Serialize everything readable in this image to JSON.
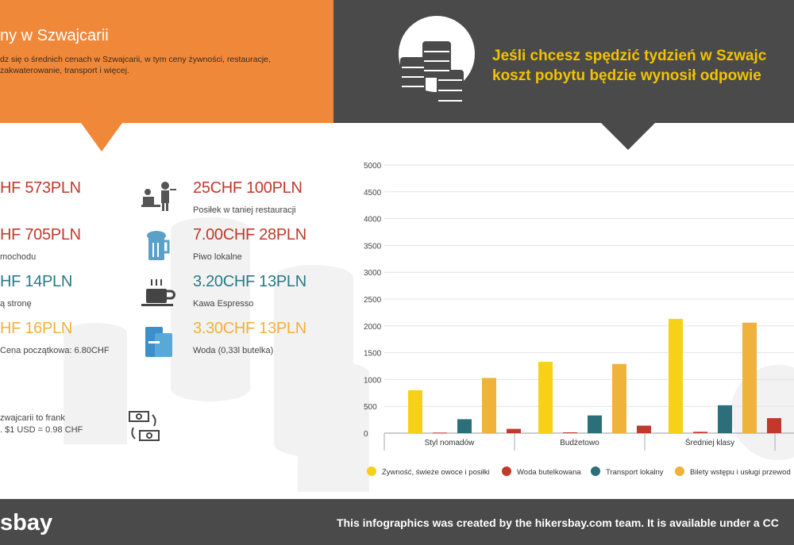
{
  "header": {
    "title": "ny w Szwajcarii",
    "description_line1": "dz się o średnich cenach w Szwajcarii, w tym ceny żywności, restauracje,",
    "description_line2": "zakwaterowanie, transport i więcej.",
    "headline_line1": "Jeśli chcesz spędzić tydzień w Szwajc",
    "headline_line2": "koszt pobytu będzie wynosił odpowie"
  },
  "prices_left": [
    {
      "price": "HF 573PLN",
      "label": "",
      "color": "#c0392b"
    },
    {
      "price": "HF 705PLN",
      "label": "mochodu",
      "color": "#c0392b"
    },
    {
      "price": "HF 14PLN",
      "label": "ą stronę",
      "color": "#2a7a86"
    },
    {
      "price": "HF 16PLN",
      "label": "Cena początkowa: 6.80CHF",
      "color": "#efb23a"
    }
  ],
  "prices_right": [
    {
      "price": "25CHF 100PLN",
      "label": "Posiłek w taniej restauracji",
      "icon": "waiter-icon",
      "color": "#c0392b"
    },
    {
      "price": "7.00CHF 28PLN",
      "label": "Piwo lokalne",
      "icon": "beer-icon",
      "color": "#c0392b"
    },
    {
      "price": "3.20CHF 13PLN",
      "label": "Kawa Espresso",
      "icon": "coffee-icon",
      "color": "#2a7a86"
    },
    {
      "price": "3.30CHF 13PLN",
      "label": "Woda (0,33l butelka)",
      "icon": "water-icon",
      "color": "#efb23a"
    }
  ],
  "currency": {
    "line1": "zwajcarii to frank",
    "line2": ". $1 USD = 0.98 CHF"
  },
  "footer": {
    "logo": "sbay",
    "note": "This infographics was created by the hikersbay.com team. It is available under a CC"
  },
  "chart_data": {
    "type": "bar",
    "categories": [
      "Styl nomadów",
      "Budżetowo",
      "Średniej klasy"
    ],
    "series": [
      {
        "name": "Żywność, świeże owoce i posiłki",
        "color": "#f7d117",
        "values": [
          800,
          1330,
          2130
        ]
      },
      {
        "name": "Woda butelkowana",
        "color": "#c0392b",
        "values": [
          10,
          15,
          25
        ]
      },
      {
        "name": "Transport lokalny",
        "color": "#2a6f7a",
        "values": [
          260,
          330,
          520
        ]
      },
      {
        "name": "Bilety wstępu i usługi przewod",
        "color": "#efb23a",
        "values": [
          1030,
          1290,
          2060
        ]
      },
      {
        "name": "",
        "color": "#c0392b",
        "values": [
          80,
          140,
          280
        ]
      }
    ],
    "ylim": [
      0,
      5000
    ],
    "yticks": [
      0,
      500,
      1000,
      1500,
      2000,
      2500,
      3000,
      3500,
      4000,
      4500,
      5000
    ],
    "legend_position": "bottom",
    "grid": true
  }
}
